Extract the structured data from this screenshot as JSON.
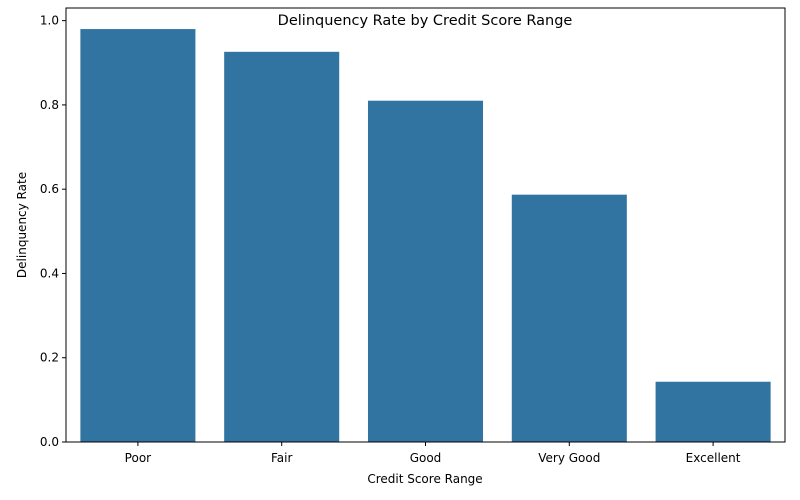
{
  "chart_data": {
    "type": "bar",
    "title": "Delinquency Rate by Credit Score Range",
    "xlabel": "Credit Score Range",
    "ylabel": "Delinquency Rate",
    "categories": [
      "Poor",
      "Fair",
      "Good",
      "Very Good",
      "Excellent"
    ],
    "values": [
      0.98,
      0.926,
      0.81,
      0.587,
      0.143
    ],
    "ylim": [
      0,
      1.03
    ],
    "yticks": [
      "0.0",
      "0.2",
      "0.4",
      "0.6",
      "0.8",
      "1.0"
    ],
    "bar_color": "#3274a1",
    "grid": false,
    "legend": "none"
  }
}
